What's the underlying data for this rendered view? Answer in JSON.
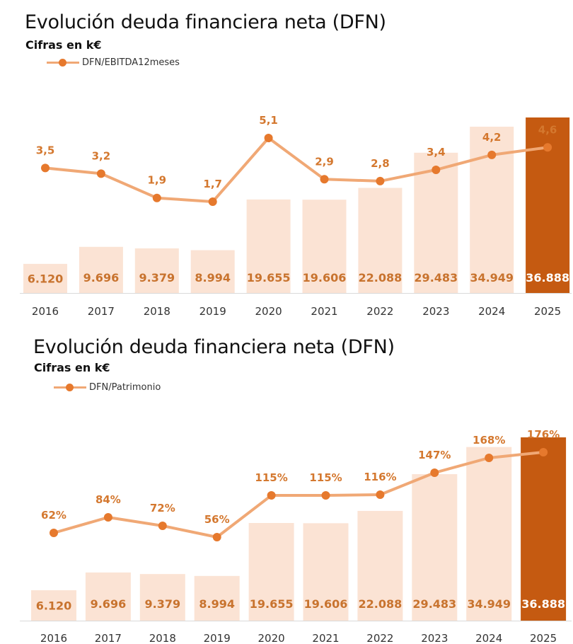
{
  "colors": {
    "bar_light": "#fbe3d4",
    "bar_highlight": "#c55a11",
    "line": "#f0a875",
    "marker": "#e6792d",
    "label": "#d4782f"
  },
  "chart_data": [
    {
      "type": "bar",
      "title": "Evolución deuda financiera neta (DFN)",
      "subtitle": "Cifras en k€",
      "legend": "DFN/EBITDA12meses",
      "categories": [
        "2016",
        "2017",
        "2018",
        "2019",
        "2020",
        "2021",
        "2022",
        "2023",
        "2024",
        "2025"
      ],
      "bar_values": [
        6120,
        9696,
        9379,
        8994,
        19655,
        19606,
        22088,
        29483,
        34949,
        36888
      ],
      "bar_labels": [
        "6.120",
        "9.696",
        "9.379",
        "8.994",
        "19.655",
        "19.606",
        "22.088",
        "29.483",
        "34.949",
        "36.888"
      ],
      "highlight_index": 9,
      "line_series": {
        "name": "DFN/EBITDA12meses",
        "values": [
          3.5,
          3.2,
          1.9,
          1.7,
          5.1,
          2.9,
          2.8,
          3.4,
          4.2,
          4.6
        ],
        "labels": [
          "3,5",
          "3,2",
          "1,9",
          "1,7",
          "5,1",
          "2,9",
          "2,8",
          "3,4",
          "4,2",
          "4,6"
        ]
      },
      "bar_ylim": [
        0,
        36888
      ],
      "line_ylim": [
        0,
        6.5
      ]
    },
    {
      "type": "bar",
      "title": "Evolución deuda financiera neta (DFN)",
      "subtitle": "Cifras en k€",
      "legend": "DFN/Patrimonio",
      "categories": [
        "2016",
        "2017",
        "2018",
        "2019",
        "2020",
        "2021",
        "2022",
        "2023",
        "2024",
        "2025"
      ],
      "bar_values": [
        6120,
        9696,
        9379,
        8994,
        19655,
        19606,
        22088,
        29483,
        34949,
        36888
      ],
      "bar_labels": [
        "6.120",
        "9.696",
        "9.379",
        "8.994",
        "19.655",
        "19.606",
        "22.088",
        "29.483",
        "34.949",
        "36.888"
      ],
      "highlight_index": 9,
      "line_series": {
        "name": "DFN/Patrimonio",
        "values": [
          62,
          84,
          72,
          56,
          115,
          115,
          116,
          147,
          168,
          176
        ],
        "labels": [
          "62%",
          "84%",
          "72%",
          "56%",
          "115%",
          "115%",
          "116%",
          "147%",
          "168%",
          "176%"
        ]
      },
      "bar_ylim": [
        0,
        36888
      ],
      "line_ylim": [
        0,
        220
      ]
    }
  ]
}
